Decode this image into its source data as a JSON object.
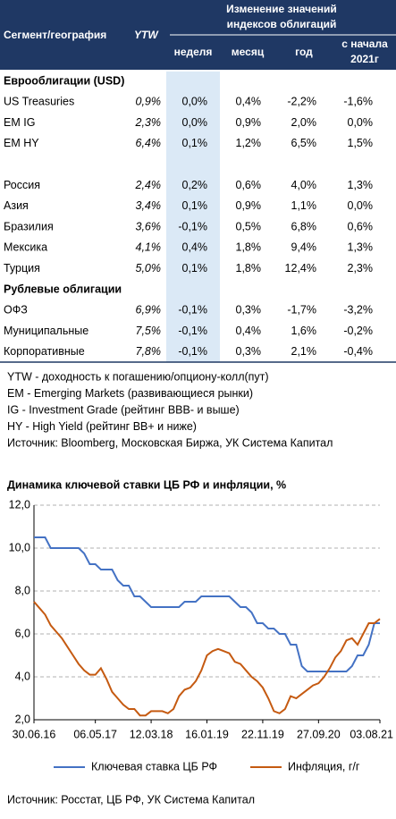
{
  "table": {
    "header": {
      "segment": "Сегмент/география",
      "ytw": "YTW",
      "group": [
        "Изменение значений",
        "индексов облигаций"
      ],
      "columns": [
        "неделя",
        "месяц",
        "год"
      ],
      "ytd": [
        "с начала",
        "2021г"
      ]
    },
    "groups": [
      {
        "title": "Еврооблигации (USD)",
        "rows": [
          [
            "US Treasuries",
            "0,9%",
            "0,0%",
            "0,4%",
            "-2,2%",
            "-1,6%"
          ],
          [
            "EM IG",
            "2,3%",
            "0,0%",
            "0,9%",
            "2,0%",
            "0,0%"
          ],
          [
            "EM HY",
            "6,4%",
            "0,1%",
            "1,2%",
            "6,5%",
            "1,5%"
          ]
        ]
      },
      {
        "rows": [
          [
            "Россия",
            "2,4%",
            "0,2%",
            "0,6%",
            "4,0%",
            "1,3%"
          ],
          [
            "Азия",
            "3,4%",
            "0,1%",
            "0,9%",
            "1,1%",
            "0,0%"
          ],
          [
            "Бразилия",
            "3,6%",
            "-0,1%",
            "0,5%",
            "6,8%",
            "0,6%"
          ],
          [
            "Мексика",
            "4,1%",
            "0,4%",
            "1,8%",
            "9,4%",
            "1,3%"
          ],
          [
            "Турция",
            "5,0%",
            "0,1%",
            "1,8%",
            "12,4%",
            "2,3%"
          ]
        ]
      },
      {
        "title": "Рублевые облигации",
        "rows": [
          [
            "ОФЗ",
            "6,9%",
            "-0,1%",
            "0,3%",
            "-1,7%",
            "-3,2%"
          ],
          [
            "Муниципальные",
            "7,5%",
            "-0,1%",
            "0,4%",
            "1,6%",
            "-0,2%"
          ],
          [
            "Корпоративные",
            "7,8%",
            "-0,1%",
            "0,3%",
            "2,1%",
            "-0,4%"
          ]
        ]
      }
    ]
  },
  "notes": [
    "YTW - доходность к погашению/опциону-колл(пут)",
    "EM - Emerging Markets (развивающиеся рынки)",
    "IG - Investment Grade (рейтинг BBB- и выше)",
    "HY - High Yield (рейтинг BB+ и ниже)",
    "Источник: Bloomberg, Московская Биржа, УК Система Капитал"
  ],
  "chart_data": {
    "type": "line",
    "title": "Динамика ключевой ставки ЦБ РФ и инфляции, %",
    "categories": [
      "30.06.16",
      null,
      null,
      null,
      null,
      null,
      null,
      null,
      null,
      null,
      null,
      "06.05.17",
      null,
      null,
      null,
      null,
      null,
      null,
      null,
      null,
      null,
      "12.03.18",
      null,
      null,
      null,
      null,
      null,
      null,
      null,
      null,
      null,
      "16.01.19",
      null,
      null,
      null,
      null,
      null,
      null,
      null,
      null,
      null,
      "22.11.19",
      null,
      null,
      null,
      null,
      null,
      null,
      null,
      null,
      null,
      "27.09.20",
      null,
      null,
      null,
      null,
      null,
      null,
      null,
      null,
      null,
      null,
      "03.08.21"
    ],
    "series": [
      {
        "name": "Ключевая ставка ЦБ РФ",
        "color": "#4472c4",
        "values": [
          10.5,
          10.5,
          10.5,
          10,
          10,
          10,
          10,
          10,
          10,
          9.75,
          9.25,
          9.25,
          9,
          9,
          9,
          8.5,
          8.25,
          8.25,
          7.75,
          7.75,
          7.5,
          7.25,
          7.25,
          7.25,
          7.25,
          7.25,
          7.25,
          7.5,
          7.5,
          7.5,
          7.75,
          7.75,
          7.75,
          7.75,
          7.75,
          7.75,
          7.5,
          7.25,
          7.25,
          7,
          6.5,
          6.5,
          6.25,
          6.25,
          6,
          6,
          5.5,
          5.5,
          4.5,
          4.25,
          4.25,
          4.25,
          4.25,
          4.25,
          4.25,
          4.25,
          4.25,
          4.5,
          5,
          5,
          5.5,
          6.5,
          6.5
        ]
      },
      {
        "name": "Инфляция, г/г",
        "color": "#c55a11",
        "values": [
          7.5,
          7.2,
          6.9,
          6.4,
          6.1,
          5.8,
          5.4,
          5,
          4.6,
          4.3,
          4.1,
          4.1,
          4.4,
          3.9,
          3.3,
          3,
          2.7,
          2.5,
          2.5,
          2.2,
          2.2,
          2.4,
          2.4,
          2.4,
          2.3,
          2.5,
          3.1,
          3.4,
          3.5,
          3.8,
          4.3,
          5,
          5.2,
          5.3,
          5.2,
          5.1,
          4.7,
          4.6,
          4.3,
          4,
          3.8,
          3.5,
          3,
          2.4,
          2.3,
          2.5,
          3.1,
          3,
          3.2,
          3.4,
          3.6,
          3.7,
          4,
          4.4,
          4.9,
          5.2,
          5.7,
          5.8,
          5.5,
          6,
          6.5,
          6.5,
          6.7
        ]
      }
    ],
    "ylim": [
      2,
      12
    ],
    "yticks": [
      {
        "value": 2,
        "label": "2,0"
      },
      {
        "value": 4,
        "label": "4,0"
      },
      {
        "value": 6,
        "label": "6,0"
      },
      {
        "value": 8,
        "label": "8,0"
      },
      {
        "value": 10,
        "label": "10,0"
      },
      {
        "value": 12,
        "label": "12,0"
      }
    ],
    "grid": true
  },
  "source": "Источник: Росстат, ЦБ РФ, УК Система Капитал"
}
